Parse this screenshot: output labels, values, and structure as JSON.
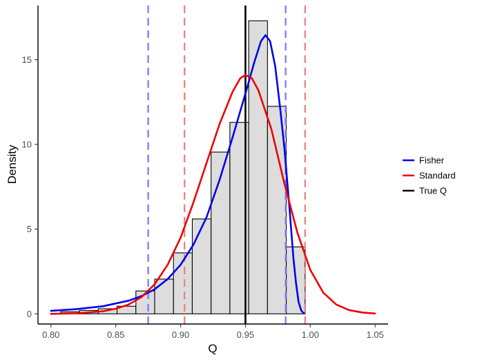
{
  "chart_data": {
    "type": "histogram",
    "title": "",
    "xlabel": "Q",
    "ylabel": "Density",
    "xlim": [
      0.79,
      1.06
    ],
    "ylim": [
      -0.6,
      18.2
    ],
    "xticks": [
      0.8,
      0.85,
      0.9,
      0.95,
      1.0,
      1.05
    ],
    "xtick_labels": [
      "0.80",
      "0.85",
      "0.90",
      "0.95",
      "1.00",
      "1.05"
    ],
    "yticks": [
      0,
      5,
      10,
      15
    ],
    "ytick_labels": [
      "0",
      "5",
      "10",
      "15"
    ],
    "grid": false,
    "legend_position": "right",
    "histogram": {
      "fill": "#dddddd",
      "stroke": "#000000",
      "bins": [
        {
          "x0": 0.8075,
          "x1": 0.822,
          "density": 0.12
        },
        {
          "x0": 0.822,
          "x1": 0.8365,
          "density": 0.2
        },
        {
          "x0": 0.8365,
          "x1": 0.851,
          "density": 0.3
        },
        {
          "x0": 0.851,
          "x1": 0.8655,
          "density": 0.45
        },
        {
          "x0": 0.8655,
          "x1": 0.88,
          "density": 1.35
        },
        {
          "x0": 0.88,
          "x1": 0.8945,
          "density": 2.05
        },
        {
          "x0": 0.8945,
          "x1": 0.909,
          "density": 3.6
        },
        {
          "x0": 0.909,
          "x1": 0.9235,
          "density": 5.6
        },
        {
          "x0": 0.9235,
          "x1": 0.938,
          "density": 9.55
        },
        {
          "x0": 0.938,
          "x1": 0.9525,
          "density": 11.3
        },
        {
          "x0": 0.9525,
          "x1": 0.967,
          "density": 17.3
        },
        {
          "x0": 0.967,
          "x1": 0.9815,
          "density": 12.25
        },
        {
          "x0": 0.9815,
          "x1": 0.996,
          "density": 3.95
        }
      ]
    },
    "series": [
      {
        "name": "Fisher",
        "color": "#0000ee",
        "type": "line",
        "points": [
          [
            0.8,
            0.18
          ],
          [
            0.82,
            0.28
          ],
          [
            0.84,
            0.45
          ],
          [
            0.86,
            0.78
          ],
          [
            0.87,
            1.05
          ],
          [
            0.88,
            1.45
          ],
          [
            0.89,
            2.05
          ],
          [
            0.9,
            2.9
          ],
          [
            0.91,
            4.1
          ],
          [
            0.92,
            5.7
          ],
          [
            0.93,
            7.9
          ],
          [
            0.94,
            10.4
          ],
          [
            0.95,
            13.0
          ],
          [
            0.957,
            14.9
          ],
          [
            0.962,
            16.1
          ],
          [
            0.9655,
            16.45
          ],
          [
            0.969,
            16.1
          ],
          [
            0.973,
            14.6
          ],
          [
            0.977,
            12.0
          ],
          [
            0.98,
            9.8
          ],
          [
            0.984,
            6.2
          ],
          [
            0.987,
            3.3
          ],
          [
            0.989,
            1.8
          ],
          [
            0.991,
            0.7
          ],
          [
            0.993,
            0.2
          ],
          [
            0.995,
            0.02
          ]
        ]
      },
      {
        "name": "Standard",
        "color": "#ee0000",
        "type": "line",
        "points": [
          [
            0.8,
            0.0
          ],
          [
            0.82,
            0.03
          ],
          [
            0.84,
            0.15
          ],
          [
            0.85,
            0.3
          ],
          [
            0.86,
            0.55
          ],
          [
            0.87,
            1.0
          ],
          [
            0.88,
            1.75
          ],
          [
            0.89,
            2.9
          ],
          [
            0.9,
            4.5
          ],
          [
            0.91,
            6.6
          ],
          [
            0.92,
            8.9
          ],
          [
            0.93,
            11.2
          ],
          [
            0.94,
            13.1
          ],
          [
            0.946,
            13.9
          ],
          [
            0.95,
            14.1
          ],
          [
            0.955,
            13.9
          ],
          [
            0.96,
            13.2
          ],
          [
            0.97,
            10.9
          ],
          [
            0.98,
            7.7
          ],
          [
            0.99,
            4.8
          ],
          [
            1.0,
            2.6
          ],
          [
            1.01,
            1.25
          ],
          [
            1.02,
            0.55
          ],
          [
            1.03,
            0.22
          ],
          [
            1.04,
            0.08
          ],
          [
            1.05,
            0.02
          ]
        ]
      }
    ],
    "vertical_lines": [
      {
        "x": 0.95,
        "color": "#000000",
        "style": "solid",
        "series": "True Q"
      },
      {
        "x": 0.875,
        "color": "#7b7bff",
        "style": "dashed",
        "series": "Fisher"
      },
      {
        "x": 0.981,
        "color": "#7b7bff",
        "style": "dashed",
        "series": "Fisher"
      },
      {
        "x": 0.903,
        "color": "#f08080",
        "style": "dashed",
        "series": "Standard"
      },
      {
        "x": 0.996,
        "color": "#f08080",
        "style": "dashed",
        "series": "Standard"
      }
    ],
    "legend": [
      {
        "label": "Fisher",
        "color": "#0000ee"
      },
      {
        "label": "Standard",
        "color": "#ee0000"
      },
      {
        "label": "True Q",
        "color": "#000000"
      }
    ]
  }
}
